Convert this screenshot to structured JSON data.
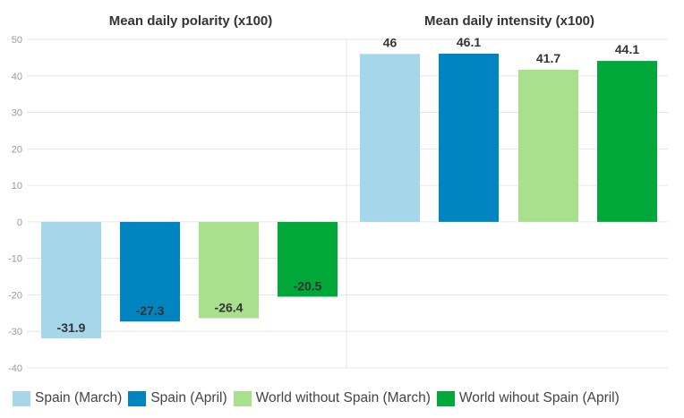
{
  "chart_data": [
    {
      "type": "bar",
      "title": "Mean daily polarity (x100)",
      "series": [
        {
          "name": "Spain (March)",
          "color": "#a6d6ea",
          "value": -31.9
        },
        {
          "name": "Spain (April)",
          "color": "#0085c1",
          "value": -27.3
        },
        {
          "name": "World without Spain (March)",
          "color": "#a8e08d",
          "value": -26.4
        },
        {
          "name": "World wihout Spain (April)",
          "color": "#00a83a",
          "value": -20.5
        }
      ],
      "data_labels": [
        "-31.9",
        "-27.3",
        "-26.4",
        "-20.5"
      ],
      "ylim": [
        -40,
        50
      ],
      "yticks": [
        50,
        40,
        30,
        20,
        10,
        0,
        -10,
        -20,
        -30,
        -40
      ]
    },
    {
      "type": "bar",
      "title": "Mean daily intensity (x100)",
      "series": [
        {
          "name": "Spain (March)",
          "color": "#a6d6ea",
          "value": 46
        },
        {
          "name": "Spain (April)",
          "color": "#0085c1",
          "value": 46.1
        },
        {
          "name": "World without Spain (March)",
          "color": "#a8e08d",
          "value": 41.7
        },
        {
          "name": "World wihout Spain (April)",
          "color": "#00a83a",
          "value": 44.1
        }
      ],
      "data_labels": [
        "46",
        "46.1",
        "41.7",
        "44.1"
      ],
      "ylim": [
        -40,
        50
      ]
    }
  ],
  "legend": [
    {
      "label": "Spain (March)",
      "color": "#a6d6ea"
    },
    {
      "label": "Spain (April)",
      "color": "#0085c1"
    },
    {
      "label": "World without Spain (March)",
      "color": "#a8e08d"
    },
    {
      "label": "World wihout Spain (April)",
      "color": "#00a83a"
    }
  ]
}
